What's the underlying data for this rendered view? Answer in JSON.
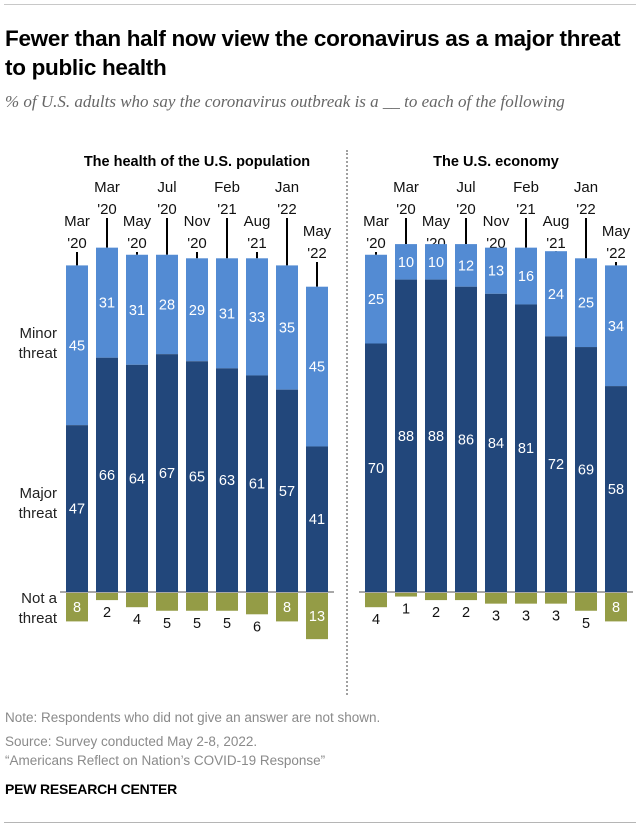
{
  "title": "Fewer than half now view the coronavirus as a major threat to public health",
  "subtitle": "% of U.S. adults who say the coronavirus outbreak is a __ to each of the following",
  "notes": {
    "note": "Note: Respondents who did not give an answer are not shown.",
    "source": "Source: Survey conducted May 2-8, 2022.",
    "report": "“Americans Reflect on Nation’s COVID-19 Response”"
  },
  "brand": "PEW RESEARCH CENTER",
  "colors": {
    "major": "#22477b",
    "minor": "#538bd3",
    "not": "#949c46",
    "baseline": "#8c8c8c"
  },
  "row_labels": {
    "minor": [
      "Minor",
      "threat"
    ],
    "major": [
      "Major",
      "threat"
    ],
    "not": [
      "Not a",
      "threat"
    ]
  },
  "chart_data": [
    {
      "type": "bar",
      "stacked": true,
      "title": "The health of the U.S. population",
      "categories": [
        "Mar '20",
        "Mar '20",
        "May '20",
        "Jul '20",
        "Nov '20",
        "Feb '21",
        "Aug '21",
        "Jan '22",
        "May '22"
      ],
      "category_lines": [
        [
          "Mar",
          "'20"
        ],
        [
          "Mar",
          "'20"
        ],
        [
          "May",
          "'20"
        ],
        [
          "Jul",
          "'20"
        ],
        [
          "Nov",
          "'20"
        ],
        [
          "Feb",
          "'21"
        ],
        [
          "Aug",
          "'21"
        ],
        [
          "Jan",
          "'22"
        ],
        [
          "May",
          "'22"
        ]
      ],
      "series": [
        {
          "name": "Major threat",
          "values": [
            47,
            66,
            64,
            67,
            65,
            63,
            61,
            57,
            41
          ]
        },
        {
          "name": "Minor threat",
          "values": [
            45,
            31,
            31,
            28,
            29,
            31,
            33,
            35,
            45
          ]
        },
        {
          "name": "Not a threat",
          "values": [
            8,
            2,
            4,
            5,
            5,
            5,
            6,
            8,
            13
          ]
        }
      ],
      "xlabel": "",
      "ylabel": ""
    },
    {
      "type": "bar",
      "stacked": true,
      "title": "The U.S. economy",
      "categories": [
        "Mar '20",
        "Mar '20",
        "May '20",
        "Jul '20",
        "Nov '20",
        "Feb '21",
        "Aug '21",
        "Jan '22",
        "May '22"
      ],
      "category_lines": [
        [
          "Mar",
          "'20"
        ],
        [
          "Mar",
          "'20"
        ],
        [
          "May",
          "'20"
        ],
        [
          "Jul",
          "'20"
        ],
        [
          "Nov",
          "'20"
        ],
        [
          "Feb",
          "'21"
        ],
        [
          "Aug",
          "'21"
        ],
        [
          "Jan",
          "'22"
        ],
        [
          "May",
          "'22"
        ]
      ],
      "series": [
        {
          "name": "Major threat",
          "values": [
            70,
            88,
            88,
            86,
            84,
            81,
            72,
            69,
            58
          ]
        },
        {
          "name": "Minor threat",
          "values": [
            25,
            10,
            10,
            12,
            13,
            16,
            24,
            25,
            34
          ]
        },
        {
          "name": "Not a threat",
          "values": [
            4,
            1,
            2,
            2,
            3,
            3,
            3,
            5,
            8
          ]
        }
      ],
      "xlabel": "",
      "ylabel": ""
    }
  ]
}
